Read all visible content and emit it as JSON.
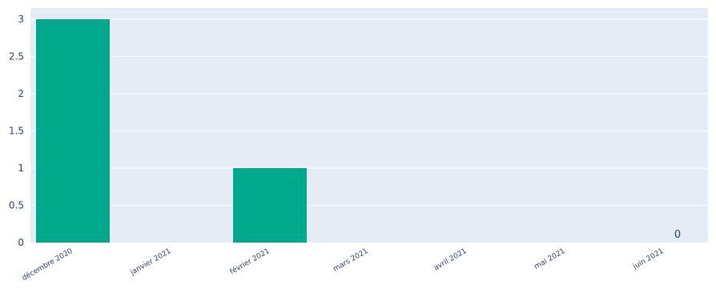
{
  "chart_data": {
    "type": "bar",
    "categories": [
      "décembre 2020",
      "janvier 2021",
      "février 2021",
      "mars 2021",
      "avril 2021",
      "mai 2021",
      "juin 2021"
    ],
    "values": [
      3,
      0,
      1,
      0,
      0,
      0,
      0
    ],
    "y_ticks": [
      "0",
      "0.5",
      "1",
      "1.5",
      "2",
      "2.5",
      "3"
    ],
    "ylim": [
      0,
      3
    ],
    "annotations": [
      {
        "category": "juin 2021",
        "text": "0"
      }
    ],
    "bar_color": "#00A98B",
    "plot_bg": "#E5ECF6",
    "grid": true,
    "title": "",
    "xlabel": "",
    "ylabel": ""
  }
}
